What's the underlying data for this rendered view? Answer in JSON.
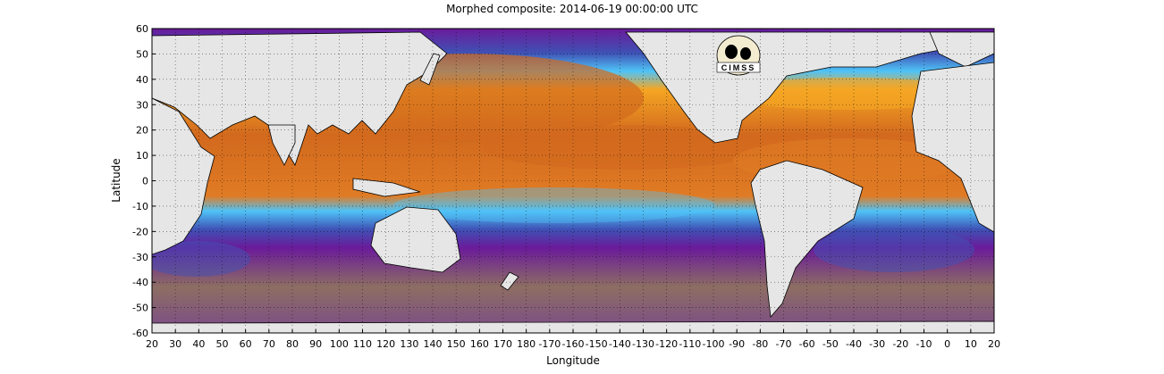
{
  "title": "Morphed composite: 2014-06-19 00:00:00 UTC",
  "logo_text": "CIMSS",
  "chart_data": {
    "type": "heatmap",
    "title": "Morphed composite: 2014-06-19 00:00:00 UTC",
    "xlabel": "Longitude",
    "ylabel": "Latitude",
    "x_ticks": [
      "20",
      "30",
      "40",
      "50",
      "60",
      "70",
      "80",
      "90",
      "100",
      "110",
      "120",
      "130",
      "140",
      "150",
      "160",
      "170",
      "180",
      "-170",
      "-160",
      "-150",
      "-140",
      "-130",
      "-120",
      "-110",
      "-100",
      "-90",
      "-80",
      "-70",
      "-60",
      "-50",
      "-40",
      "-30",
      "-20",
      "-10",
      "0",
      "10",
      "20"
    ],
    "y_ticks": [
      "60",
      "50",
      "40",
      "30",
      "20",
      "10",
      "0",
      "-10",
      "-20",
      "-30",
      "-40",
      "-50",
      "-60"
    ],
    "grid": true,
    "colors": {
      "land": "#e6e6e6",
      "very_moist": "#d2691e",
      "moist": "#f5a623",
      "mid": "#4fc3f7",
      "dry": "#3f51b5",
      "very_dry": "#6a1b9a",
      "south_band": "#8d6e63"
    }
  }
}
